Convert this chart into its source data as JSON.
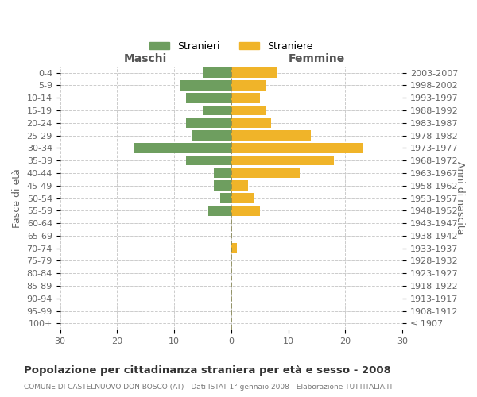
{
  "age_groups": [
    "100+",
    "95-99",
    "90-94",
    "85-89",
    "80-84",
    "75-79",
    "70-74",
    "65-69",
    "60-64",
    "55-59",
    "50-54",
    "45-49",
    "40-44",
    "35-39",
    "30-34",
    "25-29",
    "20-24",
    "15-19",
    "10-14",
    "5-9",
    "0-4"
  ],
  "birth_years": [
    "≤ 1907",
    "1908-1912",
    "1913-1917",
    "1918-1922",
    "1923-1927",
    "1928-1932",
    "1933-1937",
    "1938-1942",
    "1943-1947",
    "1948-1952",
    "1953-1957",
    "1958-1962",
    "1963-1967",
    "1968-1972",
    "1973-1977",
    "1978-1982",
    "1983-1987",
    "1988-1992",
    "1993-1997",
    "1998-2002",
    "2003-2007"
  ],
  "maschi": [
    0,
    0,
    0,
    0,
    0,
    0,
    0,
    0,
    0,
    4,
    2,
    3,
    3,
    8,
    17,
    7,
    8,
    5,
    8,
    9,
    5
  ],
  "femmine": [
    0,
    0,
    0,
    0,
    0,
    0,
    1,
    0,
    0,
    5,
    4,
    3,
    12,
    18,
    23,
    14,
    7,
    6,
    5,
    6,
    8
  ],
  "maschi_color": "#6e9e5f",
  "femmine_color": "#f0b429",
  "title": "Popolazione per cittadinanza straniera per età e sesso - 2008",
  "subtitle": "COMUNE DI CASTELNUOVO DON BOSCO (AT) - Dati ISTAT 1° gennaio 2008 - Elaborazione TUTTITALIA.IT",
  "xlabel_left": "Maschi",
  "xlabel_right": "Femmine",
  "ylabel_left": "Fasce di età",
  "ylabel_right": "Anni di nascita",
  "legend_stranieri": "Stranieri",
  "legend_straniere": "Straniere",
  "xlim": 30,
  "background_color": "#ffffff",
  "grid_color": "#cccccc",
  "bar_height": 0.8,
  "label_color": "#666666"
}
